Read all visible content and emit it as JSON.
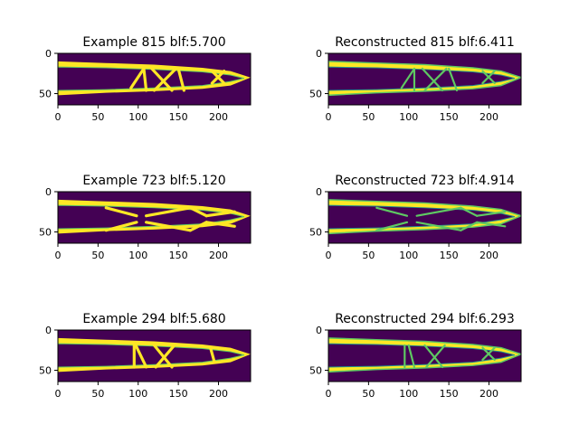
{
  "colors": {
    "background": "#440154",
    "shape": "#fde725",
    "edge": "#21918c",
    "edge_light": "#5ec962",
    "edge_dark": "#3b528b",
    "spine": "#000000"
  },
  "chart_data": [
    {
      "type": "heatmap",
      "title": "Example 815 blf:5.700",
      "xlim": [
        0,
        240
      ],
      "ylim": [
        64,
        0
      ],
      "xticks": [
        0,
        50,
        100,
        150,
        200
      ],
      "yticks": [
        0,
        50
      ],
      "grid": false,
      "variant": "original",
      "members": [
        [
          [
            107,
            19
          ],
          [
            91,
            43
          ]
        ],
        [
          [
            107,
            19
          ],
          [
            110,
            46
          ]
        ],
        [
          [
            117,
            19
          ],
          [
            142,
            46
          ]
        ],
        [
          [
            147,
            19
          ],
          [
            120,
            46
          ]
        ],
        [
          [
            150,
            19
          ],
          [
            157,
            46
          ]
        ],
        [
          [
            192,
            22
          ],
          [
            207,
            37
          ]
        ],
        [
          [
            207,
            22
          ],
          [
            192,
            37
          ]
        ]
      ]
    },
    {
      "type": "heatmap",
      "title": "Reconstructed 815 blf:6.411",
      "xlim": [
        0,
        240
      ],
      "ylim": [
        64,
        0
      ],
      "xticks": [
        0,
        50,
        100,
        150,
        200
      ],
      "yticks": [
        0,
        50
      ],
      "grid": false,
      "variant": "reconstructed",
      "members": [
        [
          [
            107,
            19
          ],
          [
            91,
            43
          ]
        ],
        [
          [
            107,
            19
          ],
          [
            107,
            46
          ]
        ],
        [
          [
            117,
            19
          ],
          [
            142,
            46
          ]
        ],
        [
          [
            147,
            19
          ],
          [
            120,
            46
          ]
        ],
        [
          [
            150,
            19
          ],
          [
            160,
            46
          ]
        ],
        [
          [
            192,
            22
          ],
          [
            207,
            37
          ]
        ],
        [
          [
            207,
            22
          ],
          [
            192,
            37
          ]
        ]
      ]
    },
    {
      "type": "heatmap",
      "title": "Example 723 blf:5.120",
      "xlim": [
        0,
        240
      ],
      "ylim": [
        64,
        0
      ],
      "xticks": [
        0,
        50,
        100,
        150,
        200
      ],
      "yticks": [
        0,
        50
      ],
      "grid": false,
      "variant": "original",
      "members": [
        [
          [
            60,
            20
          ],
          [
            98,
            30
          ]
        ],
        [
          [
            60,
            48
          ],
          [
            98,
            38
          ]
        ],
        [
          [
            110,
            30
          ],
          [
            165,
            20
          ]
        ],
        [
          [
            110,
            38
          ],
          [
            165,
            48
          ]
        ],
        [
          [
            165,
            20
          ],
          [
            185,
            30
          ]
        ],
        [
          [
            165,
            48
          ],
          [
            185,
            38
          ]
        ],
        [
          [
            185,
            30
          ],
          [
            220,
            25
          ]
        ],
        [
          [
            185,
            38
          ],
          [
            220,
            43
          ]
        ]
      ]
    },
    {
      "type": "heatmap",
      "title": "Reconstructed 723 blf:4.914",
      "xlim": [
        0,
        240
      ],
      "ylim": [
        64,
        0
      ],
      "xticks": [
        0,
        50,
        100,
        150,
        200
      ],
      "yticks": [
        0,
        50
      ],
      "grid": false,
      "variant": "reconstructed",
      "members": [
        [
          [
            60,
            20
          ],
          [
            98,
            30
          ]
        ],
        [
          [
            60,
            48
          ],
          [
            98,
            38
          ]
        ],
        [
          [
            110,
            30
          ],
          [
            165,
            20
          ]
        ],
        [
          [
            110,
            38
          ],
          [
            165,
            48
          ]
        ],
        [
          [
            165,
            20
          ],
          [
            185,
            30
          ]
        ],
        [
          [
            165,
            48
          ],
          [
            185,
            38
          ]
        ],
        [
          [
            185,
            30
          ],
          [
            220,
            25
          ]
        ],
        [
          [
            185,
            38
          ],
          [
            220,
            43
          ]
        ]
      ]
    },
    {
      "type": "heatmap",
      "title": "Example 294 blf:5.680",
      "xlim": [
        0,
        240
      ],
      "ylim": [
        64,
        0
      ],
      "xticks": [
        0,
        50,
        100,
        150,
        200
      ],
      "yticks": [
        0,
        50
      ],
      "grid": false,
      "variant": "original",
      "members": [
        [
          [
            95,
            19
          ],
          [
            95,
            46
          ]
        ],
        [
          [
            97,
            19
          ],
          [
            110,
            46
          ]
        ],
        [
          [
            120,
            19
          ],
          [
            142,
            46
          ]
        ],
        [
          [
            145,
            19
          ],
          [
            122,
            46
          ]
        ],
        [
          [
            190,
            22
          ],
          [
            195,
            40
          ]
        ]
      ]
    },
    {
      "type": "heatmap",
      "title": "Reconstructed 294 blf:6.293",
      "xlim": [
        0,
        240
      ],
      "ylim": [
        64,
        0
      ],
      "xticks": [
        0,
        50,
        100,
        150,
        200
      ],
      "yticks": [
        0,
        50
      ],
      "grid": false,
      "variant": "reconstructed",
      "members": [
        [
          [
            95,
            19
          ],
          [
            95,
            46
          ]
        ],
        [
          [
            100,
            19
          ],
          [
            107,
            46
          ]
        ],
        [
          [
            120,
            19
          ],
          [
            142,
            46
          ]
        ],
        [
          [
            145,
            19
          ],
          [
            122,
            46
          ]
        ],
        [
          [
            192,
            22
          ],
          [
            207,
            37
          ]
        ],
        [
          [
            207,
            22
          ],
          [
            192,
            37
          ]
        ]
      ]
    }
  ]
}
